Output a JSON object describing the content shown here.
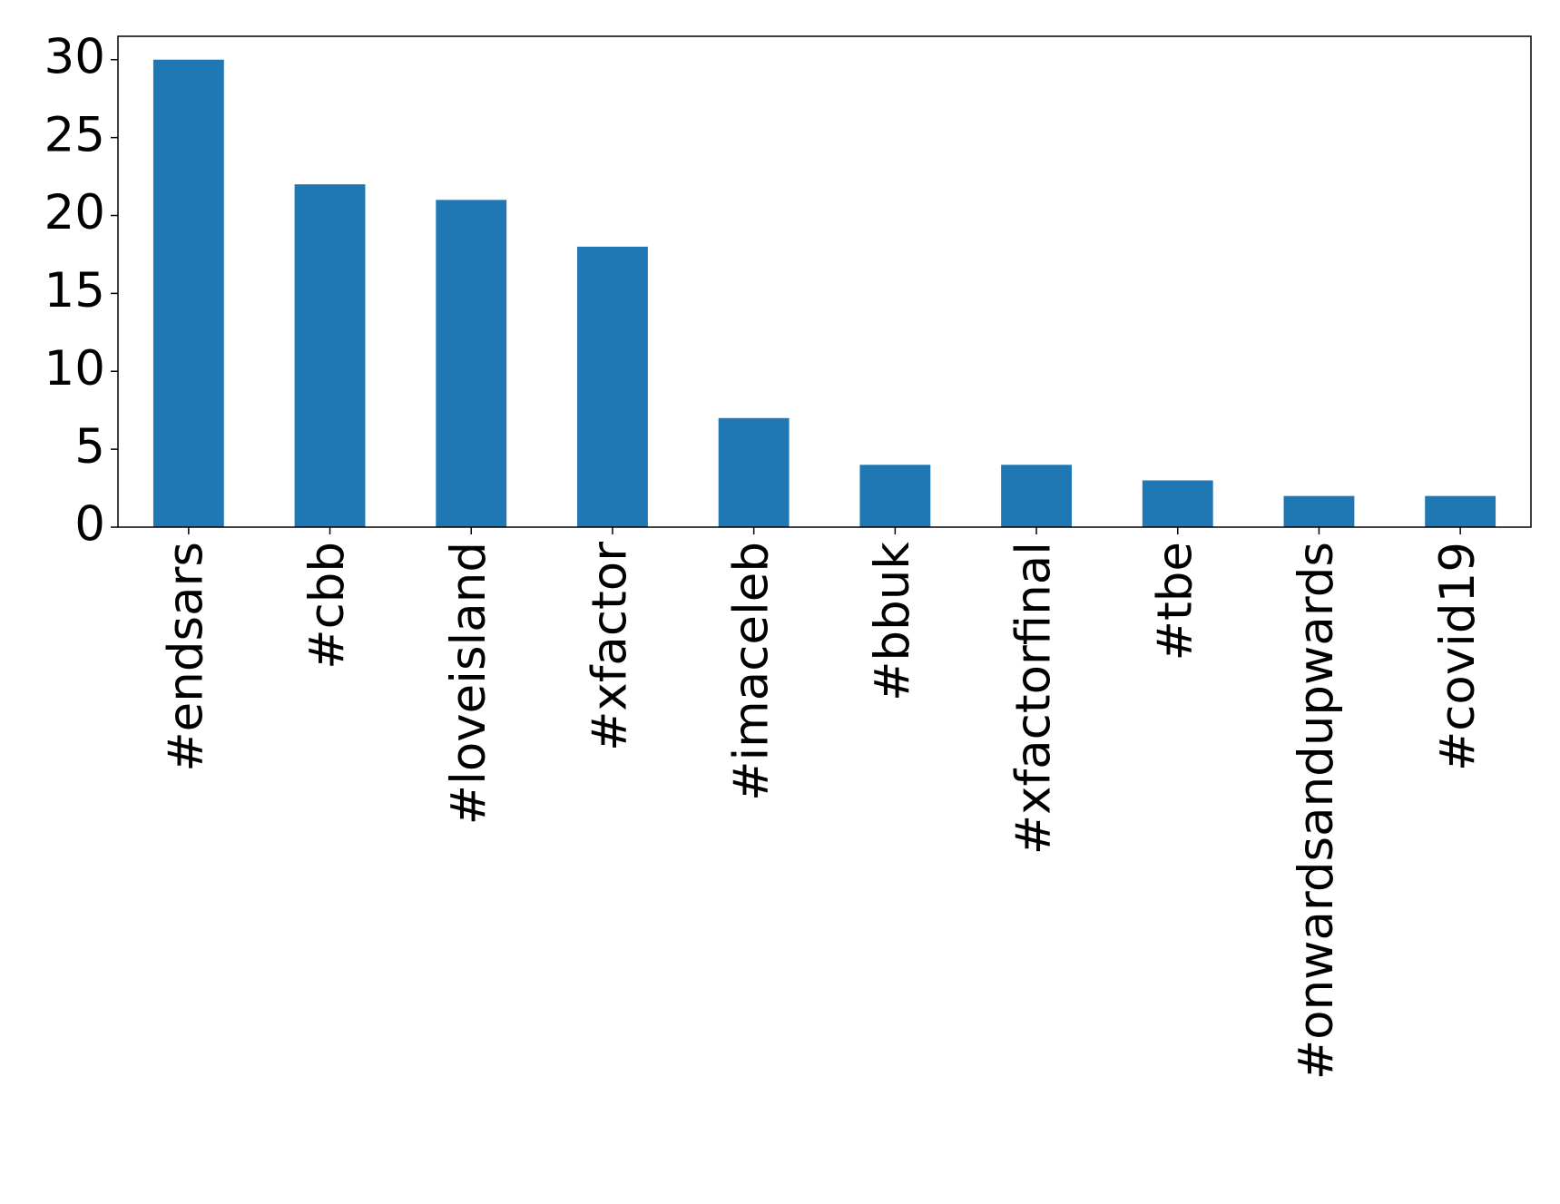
{
  "chart_data": {
    "type": "bar",
    "categories": [
      "#endsars",
      "#cbb",
      "#loveisland",
      "#xfactor",
      "#imaceleb",
      "#bbuk",
      "#xfactorfinal",
      "#tbe",
      "#onwardsandupwards",
      "#covid19"
    ],
    "values": [
      30,
      22,
      21,
      18,
      7,
      4,
      4,
      3,
      2,
      2
    ],
    "color": "#1f77b4",
    "ylim": [
      0,
      31.5
    ],
    "yticks": [
      0,
      5,
      10,
      15,
      20,
      25,
      30
    ],
    "grid": false
  }
}
